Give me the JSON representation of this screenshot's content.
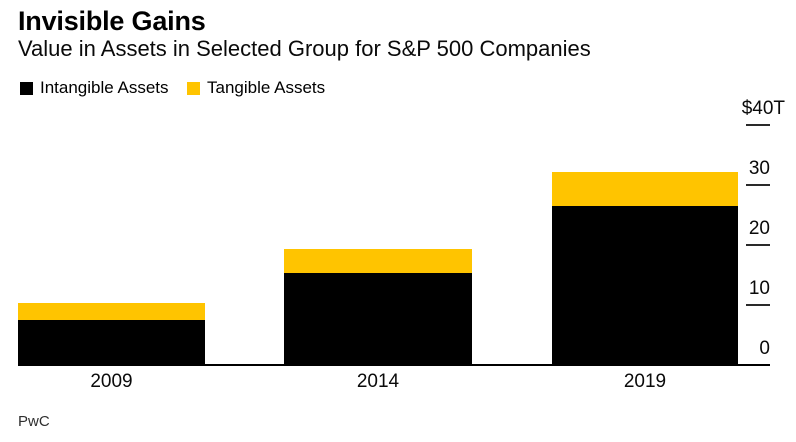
{
  "chart_data": {
    "type": "bar",
    "stacked": true,
    "title": "Invisible Gains",
    "subtitle": "Value in Assets in Selected Group for S&P 500 Companies",
    "source": "PwC",
    "unit": "$T",
    "categories": [
      "2009",
      "2014",
      "2019"
    ],
    "series": [
      {
        "name": "Intangible Assets",
        "color": "#000000",
        "values": [
          7.5,
          15.3,
          26.5
        ]
      },
      {
        "name": "Tangible Assets",
        "color": "#ffc400",
        "values": [
          2.8,
          4.0,
          5.7
        ]
      }
    ],
    "totals": [
      10.3,
      19.3,
      32.2
    ],
    "ylim": [
      0,
      40
    ],
    "yticks": [
      {
        "value": 40,
        "label": "$40T",
        "has_unit": true
      },
      {
        "value": 30,
        "label": "30",
        "has_unit": false
      },
      {
        "value": 20,
        "label": "20",
        "has_unit": false
      },
      {
        "value": 10,
        "label": "10",
        "has_unit": false
      },
      {
        "value": 0,
        "label": "0",
        "has_unit": false
      }
    ],
    "axis_side": "right",
    "grid": false,
    "legend_position": "top-left",
    "colors": {
      "background": "#ffffff",
      "accent_yellow": "#ffc400",
      "bar_black": "#000000",
      "axis_line": "#000000",
      "tick_mark": "#2a2a2a",
      "text": "#0a0a0a"
    }
  }
}
